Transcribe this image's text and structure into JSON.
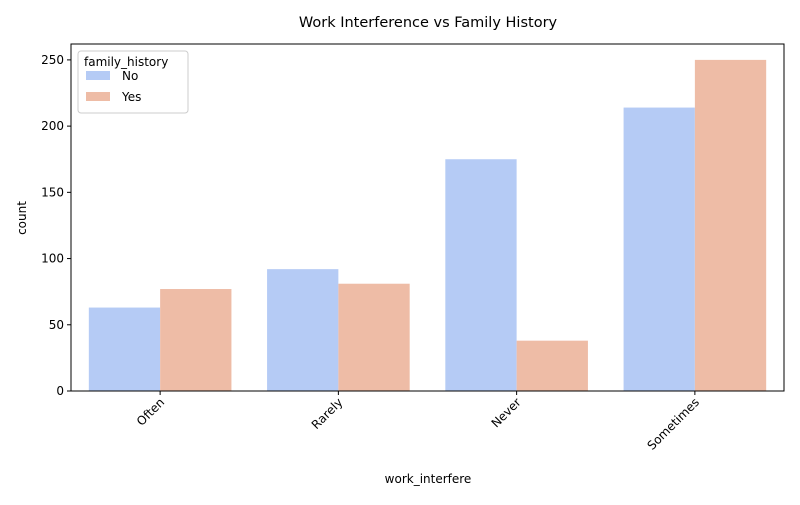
{
  "chart_data": {
    "type": "bar",
    "title": "Work Interference vs Family History",
    "xlabel": "work_interfere",
    "ylabel": "count",
    "categories": [
      "Often",
      "Rarely",
      "Never",
      "Sometimes"
    ],
    "series": [
      {
        "name": "No",
        "values": [
          63,
          92,
          175,
          214
        ],
        "color": "#b5cbf5"
      },
      {
        "name": "Yes",
        "values": [
          77,
          81,
          38,
          250
        ],
        "color": "#eebca6"
      }
    ],
    "ylim": [
      0,
      262
    ],
    "yticks": [
      "0",
      "50",
      "100",
      "150",
      "200",
      "250"
    ],
    "legend": {
      "title": "family_history",
      "placement": "top-left"
    },
    "grid": false
  }
}
